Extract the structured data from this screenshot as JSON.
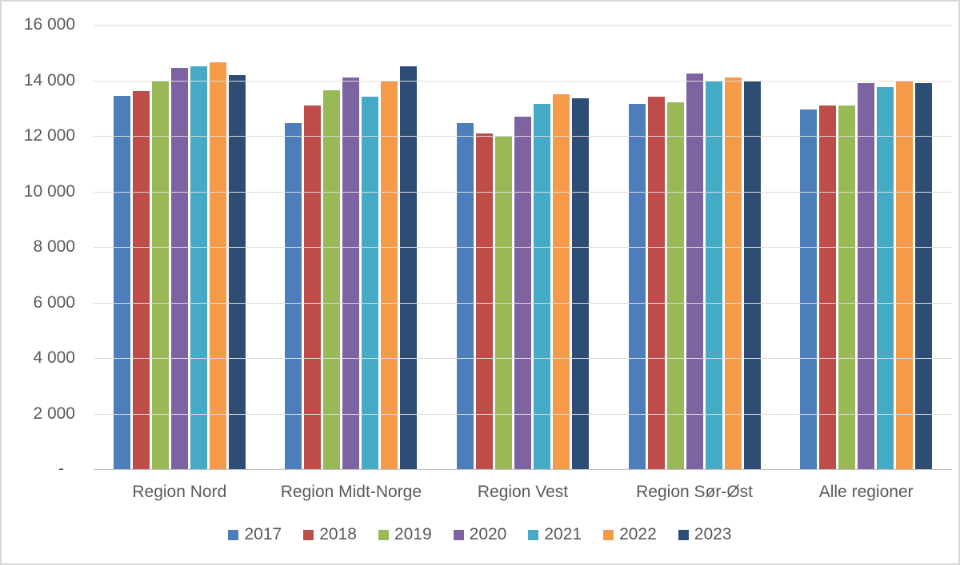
{
  "chart_data": {
    "type": "bar",
    "title": "",
    "categories": [
      "Region Nord",
      "Region Midt-Norge",
      "Region Vest",
      "Region Sør-Øst",
      "Alle regioner"
    ],
    "series": [
      {
        "name": "2017",
        "color": "#4C7EBB",
        "values": [
          13450,
          12450,
          12450,
          13150,
          12950
        ]
      },
      {
        "name": "2018",
        "color": "#BE4C48",
        "values": [
          13600,
          13100,
          12100,
          13400,
          13100
        ]
      },
      {
        "name": "2019",
        "color": "#99B957",
        "values": [
          13950,
          13650,
          12000,
          13200,
          13100
        ]
      },
      {
        "name": "2020",
        "color": "#7D63A2",
        "values": [
          14450,
          14100,
          12700,
          14250,
          13900
        ]
      },
      {
        "name": "2021",
        "color": "#45AAC6",
        "values": [
          14500,
          13400,
          13150,
          13950,
          13750
        ]
      },
      {
        "name": "2022",
        "color": "#F59A49",
        "values": [
          14650,
          13950,
          13500,
          14100,
          14000
        ]
      },
      {
        "name": "2023",
        "color": "#2E4D74",
        "values": [
          14200,
          14500,
          13350,
          13950,
          13900
        ]
      }
    ],
    "ylim": [
      0,
      16000
    ],
    "ytick_step": 2000,
    "ytick_labels": [
      "16 000",
      "14 000",
      "12 000",
      "10 000",
      "8 000",
      "6 000",
      "4 000",
      "2 000",
      "-"
    ],
    "grid": "horizontal",
    "legend_position": "bottom"
  },
  "colors": {
    "background": "#FFFFFF",
    "border": "#D9D9D9",
    "gridline": "#DCDCDC",
    "axis_line": "#C0C0C0",
    "text": "#595959"
  }
}
